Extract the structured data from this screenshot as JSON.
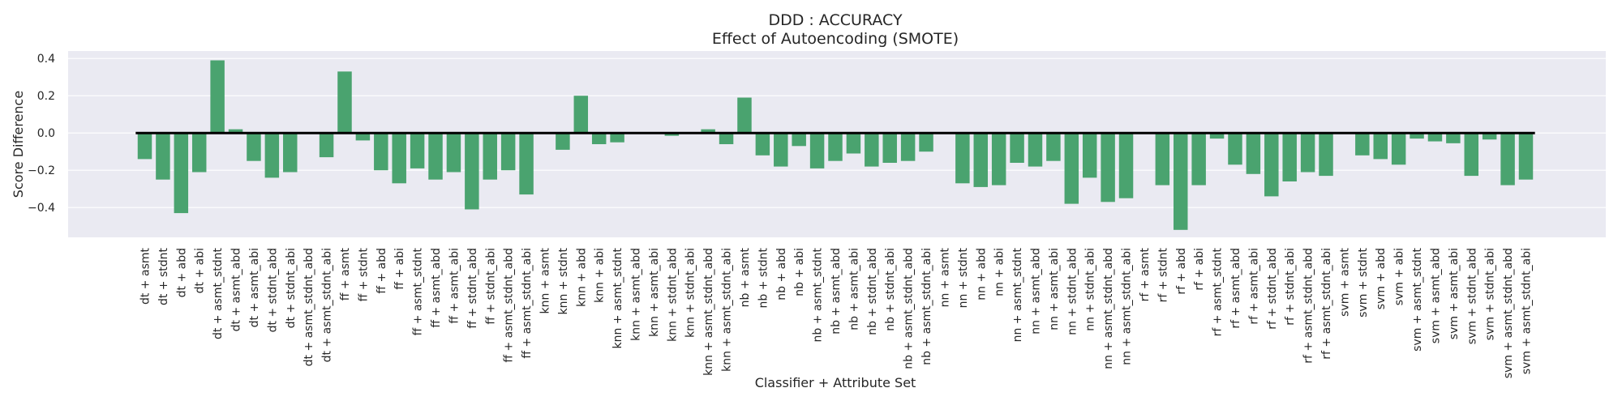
{
  "chart_data": {
    "type": "bar",
    "title": "DDD : ACCURACY",
    "subtitle": "Effect of Autoencoding (SMOTE)",
    "xlabel": "Classifier + Attribute Set",
    "ylabel": "Score Difference",
    "ylim": [
      -0.56,
      0.44
    ],
    "yticks": [
      -0.4,
      -0.2,
      0.0,
      0.2,
      0.4
    ],
    "ytick_labels": [
      "−0.4",
      "−0.2",
      "0.0",
      "0.2",
      "0.4"
    ],
    "grid": true,
    "bar_color": "#4aa36f",
    "background_color": "#eaeaf2",
    "zero_line_color": "#000000",
    "categories": [
      "dt + asmt",
      "dt + stdnt",
      "dt + abd",
      "dt + abi",
      "dt + asmt_stdnt",
      "dt + asmt_abd",
      "dt + asmt_abi",
      "dt + stdnt_abd",
      "dt + stdnt_abi",
      "dt + asmt_stdnt_abd",
      "dt + asmt_stdnt_abi",
      "ff + asmt",
      "ff + stdnt",
      "ff + abd",
      "ff + abi",
      "ff + asmt_stdnt",
      "ff + asmt_abd",
      "ff + asmt_abi",
      "ff + stdnt_abd",
      "ff + stdnt_abi",
      "ff + asmt_stdnt_abd",
      "ff + asmt_stdnt_abi",
      "knn + asmt",
      "knn + stdnt",
      "knn + abd",
      "knn + abi",
      "knn + asmt_stdnt",
      "knn + asmt_abd",
      "knn + asmt_abi",
      "knn + stdnt_abd",
      "knn + stdnt_abi",
      "knn + asmt_stdnt_abd",
      "knn + asmt_stdnt_abi",
      "nb + asmt",
      "nb + stdnt",
      "nb + abd",
      "nb + abi",
      "nb + asmt_stdnt",
      "nb + asmt_abd",
      "nb + asmt_abi",
      "nb + stdnt_abd",
      "nb + stdnt_abi",
      "nb + asmt_stdnt_abd",
      "nb + asmt_stdnt_abi",
      "nn + asmt",
      "nn + stdnt",
      "nn + abd",
      "nn + abi",
      "nn + asmt_stdnt",
      "nn + asmt_abd",
      "nn + asmt_abi",
      "nn + stdnt_abd",
      "nn + stdnt_abi",
      "nn + asmt_stdnt_abd",
      "nn + asmt_stdnt_abi",
      "rf + asmt",
      "rf + stdnt",
      "rf + abd",
      "rf + abi",
      "rf + asmt_stdnt",
      "rf + asmt_abd",
      "rf + asmt_abi",
      "rf + stdnt_abd",
      "rf + stdnt_abi",
      "rf + asmt_stdnt_abd",
      "rf + asmt_stdnt_abi",
      "svm + asmt",
      "svm + stdnt",
      "svm + abd",
      "svm + abi",
      "svm + asmt_stdnt",
      "svm + asmt_abd",
      "svm + asmt_abi",
      "svm + stdnt_abd",
      "svm + stdnt_abi",
      "svm + asmt_stdnt_abd",
      "svm + asmt_stdnt_abi"
    ],
    "values": [
      -0.14,
      -0.25,
      -0.43,
      -0.21,
      0.39,
      0.02,
      -0.15,
      -0.24,
      -0.21,
      0.0,
      -0.13,
      0.33,
      -0.04,
      -0.2,
      -0.27,
      -0.19,
      -0.25,
      -0.21,
      -0.41,
      -0.25,
      -0.2,
      -0.33,
      0.0,
      -0.09,
      0.2,
      -0.06,
      -0.05,
      0.0,
      0.0,
      -0.015,
      0.0,
      0.02,
      -0.06,
      0.19,
      -0.12,
      -0.18,
      -0.07,
      -0.19,
      -0.15,
      -0.11,
      -0.18,
      -0.16,
      -0.15,
      -0.1,
      0.0,
      -0.27,
      -0.29,
      -0.28,
      -0.16,
      -0.18,
      -0.15,
      -0.38,
      -0.24,
      -0.37,
      -0.35,
      0.0,
      -0.28,
      -0.52,
      -0.28,
      -0.03,
      -0.17,
      -0.22,
      -0.34,
      -0.26,
      -0.21,
      -0.23,
      0.0,
      -0.12,
      -0.14,
      -0.17,
      -0.03,
      -0.045,
      -0.055,
      -0.23,
      -0.035,
      -0.28,
      -0.25
    ]
  }
}
